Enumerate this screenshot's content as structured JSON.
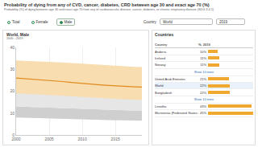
{
  "header": {
    "title": "Probability of dying from any of CVD, cancer, diabetes, CRD between age 30 and exact age 70 (%)",
    "subtitle": "Probability (%) of dying between age 30 and exact age 70 from any of cardiovascular disease, cancer, diabetes, or chronic respiratory disease (SDG 3.4.1)",
    "sex_options": [
      "Total",
      "Female",
      "Male"
    ],
    "selected_sex": "Male",
    "country_label": "Country",
    "country": "World",
    "year": "2019"
  },
  "chart_data": {
    "type": "line",
    "title": "World, Male",
    "subtitle": "2000 - 2019",
    "x": [
      2000,
      2001,
      2002,
      2003,
      2004,
      2005,
      2006,
      2007,
      2008,
      2009,
      2010,
      2011,
      2012,
      2013,
      2014,
      2015,
      2016,
      2017,
      2018,
      2019
    ],
    "series": [
      {
        "type": "band",
        "color": "#cfcfcf",
        "upper": [
          13.0,
          12.9,
          12.8,
          12.7,
          12.6,
          12.5,
          12.4,
          12.3,
          12.2,
          12.1,
          12.0,
          11.8,
          11.6,
          11.5,
          11.4,
          11.3,
          11.2,
          11.1,
          11.0,
          11.0
        ],
        "lower": [
          8.0,
          7.9,
          7.8,
          7.8,
          7.7,
          7.6,
          7.5,
          7.4,
          7.3,
          7.2,
          7.1,
          7.0,
          6.9,
          6.9,
          6.8,
          6.7,
          6.7,
          6.6,
          6.5,
          6.5
        ]
      },
      {
        "type": "band",
        "color": "#e6e6e6",
        "upper": [
          21.0,
          20.9,
          20.7,
          20.5,
          20.3,
          20.1,
          19.9,
          19.7,
          19.5,
          19.3,
          19.1,
          18.9,
          18.7,
          18.6,
          18.5,
          18.4,
          18.3,
          18.2,
          18.1,
          18.0
        ],
        "lower": [
          13.0,
          12.9,
          12.8,
          12.7,
          12.6,
          12.5,
          12.4,
          12.3,
          12.2,
          12.1,
          12.0,
          11.8,
          11.6,
          11.5,
          11.4,
          11.3,
          11.2,
          11.1,
          11.0,
          11.0
        ]
      },
      {
        "type": "band",
        "color": "#f8ddb0",
        "upper": [
          34.0,
          33.9,
          33.8,
          33.7,
          33.6,
          33.5,
          33.3,
          33.1,
          32.9,
          32.7,
          32.5,
          32.3,
          32.1,
          31.9,
          31.7,
          31.5,
          31.3,
          31.2,
          31.1,
          31.0
        ],
        "lower": [
          19.0,
          18.9,
          18.8,
          18.7,
          18.5,
          18.3,
          18.1,
          17.9,
          17.7,
          17.5,
          17.3,
          17.1,
          16.9,
          16.7,
          16.5,
          16.4,
          16.3,
          16.2,
          16.1,
          16.0
        ]
      },
      {
        "type": "line",
        "color": "#e08a1e",
        "values": [
          26.0,
          25.8,
          25.6,
          25.4,
          25.2,
          25.0,
          24.7,
          24.4,
          24.1,
          23.8,
          23.5,
          23.3,
          23.0,
          22.8,
          22.6,
          22.4,
          22.2,
          22.1,
          22.0,
          21.9
        ]
      }
    ],
    "xlim": [
      2000,
      2019
    ],
    "xticks": [
      2000,
      2005,
      2010,
      2015
    ],
    "ylim": [
      0,
      40
    ],
    "yticks": [
      0,
      10,
      20,
      30,
      40
    ],
    "grid": true
  },
  "countries_panel": {
    "title": "Countries",
    "columns": [
      "Country",
      "%, 2019"
    ],
    "selected": "World",
    "color": "#f0a830",
    "sections": [
      {
        "rows": [
          {
            "country": "Andorra",
            "value": 10,
            "label": "10%"
          },
          {
            "country": "Iceland",
            "value": 11,
            "label": "11%"
          },
          {
            "country": "Norway",
            "value": 11,
            "label": "11%"
          }
        ]
      },
      {
        "more": "Show 10 more",
        "rows": [
          {
            "country": "United Arab Emirates",
            "value": 21,
            "label": "21%"
          },
          {
            "country": "World",
            "value": 22,
            "label": "22%"
          },
          {
            "country": "Bangladesh",
            "value": 22,
            "label": "22%"
          }
        ]
      },
      {
        "more": "Show 10 more",
        "rows": [
          {
            "country": "Lesotho",
            "value": 43,
            "label": "43%"
          },
          {
            "country": "Micronesia (Federated States of)",
            "value": 45,
            "label": "45%"
          }
        ]
      }
    ]
  }
}
